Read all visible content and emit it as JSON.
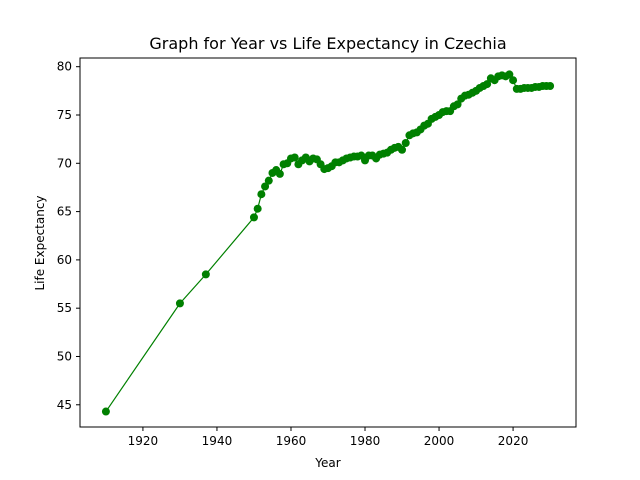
{
  "chart_data": {
    "type": "line",
    "title": "Graph for Year vs Life Expectancy in Czechia",
    "xlabel": "Year",
    "ylabel": "Life Expectancy",
    "xlim": [
      1903,
      2037
    ],
    "ylim": [
      42.7,
      80.9
    ],
    "x_ticks": [
      1920,
      1940,
      1960,
      1980,
      2000,
      2020
    ],
    "y_ticks": [
      45,
      50,
      55,
      60,
      65,
      70,
      75,
      80
    ],
    "grid": false,
    "legend": "none",
    "colors": {
      "series": "#008000",
      "axes": "#000000",
      "background": "#ffffff"
    },
    "series": [
      {
        "marker": "circle",
        "x": [
          1910,
          1930,
          1937,
          1950,
          1951,
          1952,
          1953,
          1954,
          1955,
          1956,
          1957,
          1958,
          1959,
          1960,
          1961,
          1962,
          1963,
          1964,
          1965,
          1966,
          1967,
          1968,
          1969,
          1970,
          1971,
          1972,
          1973,
          1974,
          1975,
          1976,
          1977,
          1978,
          1979,
          1980,
          1981,
          1982,
          1983,
          1984,
          1985,
          1986,
          1987,
          1988,
          1989,
          1990,
          1991,
          1992,
          1993,
          1994,
          1995,
          1996,
          1997,
          1998,
          1999,
          2000,
          2001,
          2002,
          2003,
          2004,
          2005,
          2006,
          2007,
          2008,
          2009,
          2010,
          2011,
          2012,
          2013,
          2014,
          2015,
          2016,
          2017,
          2018,
          2019,
          2020,
          2021,
          2022,
          2023,
          2024,
          2025,
          2026,
          2027,
          2028,
          2029,
          2030
        ],
        "y": [
          44.3,
          55.5,
          58.5,
          64.4,
          65.3,
          66.8,
          67.6,
          68.2,
          69.0,
          69.3,
          68.9,
          69.9,
          70.0,
          70.5,
          70.6,
          69.9,
          70.3,
          70.6,
          70.2,
          70.5,
          70.4,
          69.9,
          69.4,
          69.5,
          69.7,
          70.1,
          70.1,
          70.3,
          70.5,
          70.6,
          70.7,
          70.7,
          70.8,
          70.3,
          70.8,
          70.8,
          70.5,
          70.9,
          71.0,
          71.1,
          71.4,
          71.6,
          71.7,
          71.4,
          72.1,
          72.9,
          73.1,
          73.2,
          73.5,
          73.9,
          74.1,
          74.6,
          74.8,
          75.0,
          75.3,
          75.4,
          75.4,
          75.9,
          76.1,
          76.7,
          77.0,
          77.1,
          77.3,
          77.5,
          77.8,
          78.0,
          78.2,
          78.8,
          78.6,
          79.0,
          79.1,
          79.0,
          79.2,
          78.6,
          77.7,
          77.7,
          77.8,
          77.8,
          77.8,
          77.9,
          77.9,
          78.0,
          78.0,
          78.0
        ]
      }
    ]
  }
}
